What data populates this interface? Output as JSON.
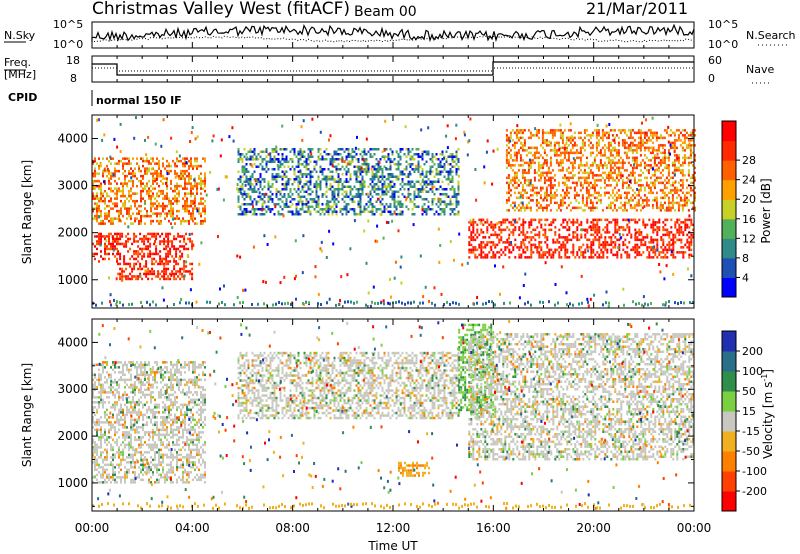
{
  "header": {
    "station": "Christmas Valley West (fitACF)",
    "beam": "Beam 00",
    "date": "21/Mar/2011"
  },
  "nsky_panel": {
    "left_label": "N.Sky",
    "right_label": "N.Search",
    "left_ticks": [
      "10^5",
      "10^0"
    ],
    "right_ticks": [
      "10^5",
      "10^0"
    ]
  },
  "freq_panel": {
    "left_label_line1": "Freq.",
    "left_label_line2": "[MHz]",
    "left_ticks": [
      "18",
      "8"
    ],
    "right_label": "Nave",
    "right_ticks": [
      "60",
      "0"
    ],
    "cpid_label": "CPID",
    "cpid_value": "normal 150 IF"
  },
  "chart_data": [
    {
      "type": "heatmap",
      "panel": "power",
      "xlabel": "",
      "ylabel": "Slant Range [km]",
      "xlim": [
        0,
        24
      ],
      "ylim": [
        400,
        4500
      ],
      "y_ticks": [
        "1000",
        "2000",
        "3000",
        "4000"
      ],
      "colorbar": {
        "label": "Power [dB]",
        "tick_labels": [
          "4",
          "8",
          "12",
          "16",
          "20",
          "24",
          "28"
        ],
        "colors": [
          "#0000ff",
          "#1e4fb4",
          "#2f8a8a",
          "#52b05a",
          "#c8d028",
          "#ffa000",
          "#ff6000",
          "#ff2a00",
          "#ff0000"
        ]
      },
      "regions": [
        {
          "t0": 0.0,
          "t1": 1.0,
          "r0": 1400,
          "r1": 2000,
          "level": "high"
        },
        {
          "t0": 1.0,
          "t1": 4.0,
          "r0": 1000,
          "r1": 2000,
          "level": "high"
        },
        {
          "t0": 0.0,
          "t1": 4.5,
          "r0": 2200,
          "r1": 3600,
          "level": "medium"
        },
        {
          "t0": 5.8,
          "t1": 14.6,
          "r0": 2400,
          "r1": 3800,
          "level": "low"
        },
        {
          "t0": 15.0,
          "t1": 24.0,
          "r0": 1500,
          "r1": 2300,
          "level": "high"
        },
        {
          "t0": 16.5,
          "t1": 24.0,
          "r0": 2500,
          "r1": 4200,
          "level": "medium"
        }
      ]
    },
    {
      "type": "heatmap",
      "panel": "velocity",
      "xlabel": "Time UT",
      "ylabel": "Slant Range [km]",
      "xlim": [
        0,
        24
      ],
      "ylim": [
        400,
        4500
      ],
      "x_ticks": [
        "00:00",
        "04:00",
        "08:00",
        "12:00",
        "16:00",
        "20:00",
        "00:00"
      ],
      "y_ticks": [
        "1000",
        "2000",
        "3000",
        "4000"
      ],
      "colorbar": {
        "label": "Velocity [m s^-1]",
        "tick_labels": [
          "200",
          "100",
          "50",
          "15",
          "-15",
          "-50",
          "-100",
          "-200"
        ],
        "colors": [
          "#2030b0",
          "#2a6f8a",
          "#2f8f4a",
          "#7ad040",
          "#c8c8c0",
          "#f0b020",
          "#ff8000",
          "#ff4000",
          "#ff0000"
        ]
      },
      "regions": [
        {
          "t0": 0.0,
          "t1": 4.5,
          "r0": 1000,
          "r1": 3600,
          "level": "ground"
        },
        {
          "t0": 5.8,
          "t1": 14.6,
          "r0": 2400,
          "r1": 3800,
          "level": "ground"
        },
        {
          "t0": 12.2,
          "t1": 13.4,
          "r0": 1150,
          "r1": 1450,
          "level": "negative"
        },
        {
          "t0": 14.6,
          "t1": 16.0,
          "r0": 2500,
          "r1": 4400,
          "level": "positive"
        },
        {
          "t0": 15.0,
          "t1": 24.0,
          "r0": 1500,
          "r1": 4200,
          "level": "ground"
        }
      ]
    }
  ]
}
